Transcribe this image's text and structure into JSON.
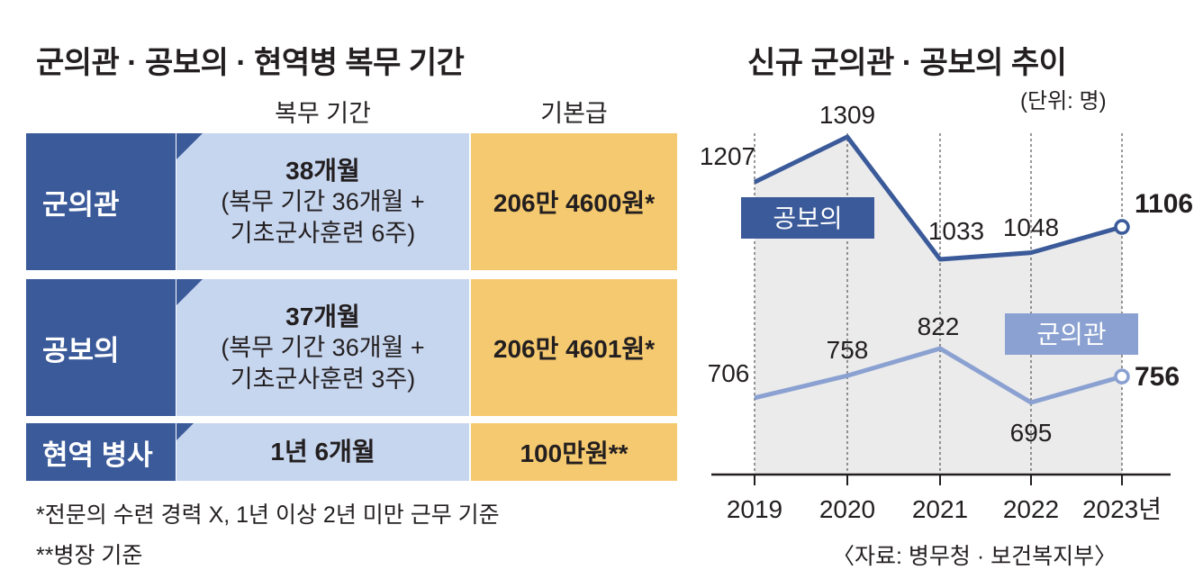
{
  "left": {
    "title": "군의관 · 공보의 · 현역병 복무 기간",
    "col_period": "복무 기간",
    "col_pay": "기본급",
    "rows": [
      {
        "label": "군의관",
        "period_main": "38개월",
        "period_line2": "(복무 기간 36개월 +",
        "period_line3": "기초군사훈련 6주)",
        "pay": "206만 4600원*"
      },
      {
        "label": "공보의",
        "period_main": "37개월",
        "period_line2": "(복무 기간 36개월 +",
        "period_line3": "기초군사훈련 3주)",
        "pay": "206만 4601원*"
      },
      {
        "label": "현역 병사",
        "period_main": "1년 6개월",
        "pay": "100만원**"
      }
    ],
    "footnotes": [
      "*전문의 수련 경력 X, 1년 이상 2년 미만 근무 기준",
      "**병장 기준"
    ]
  },
  "chart_data": {
    "type": "line",
    "title": "신규 군의관 · 공보의 추이",
    "unit": "(단위: 명)",
    "x": [
      "2019",
      "2020",
      "2021",
      "2022",
      "2023년"
    ],
    "series": [
      {
        "name": "공보의",
        "values": [
          1207,
          1309,
          1033,
          1048,
          1106
        ],
        "color": "#3b5a9a"
      },
      {
        "name": "군의관",
        "values": [
          706,
          758,
          822,
          695,
          756
        ],
        "color": "#8aa1d1"
      }
    ],
    "source": "〈자료: 병무청 · 보건복지부〉",
    "grid": false
  }
}
